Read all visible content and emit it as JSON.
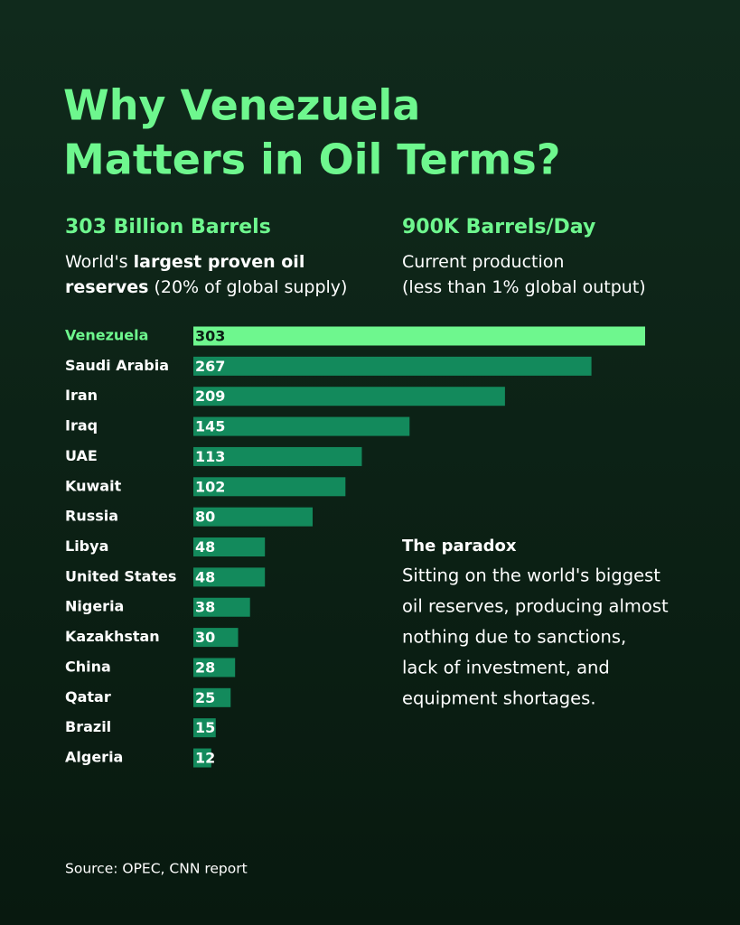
{
  "chart_data": {
    "type": "bar",
    "orientation": "horizontal",
    "title_lines": [
      "Why Venezuela",
      "Matters in Oil Terms?"
    ],
    "stats": [
      {
        "headline": "303 Billion Barrels",
        "lines": [
          [
            "World's ",
            "largest proven oil"
          ],
          [
            "reserves",
            " (20% of global supply)"
          ]
        ]
      },
      {
        "headline": "900K Barrels/Day",
        "lines": [
          [
            "Current production"
          ],
          [
            "(less than 1% global output)"
          ]
        ]
      }
    ],
    "categories": [
      "Venezuela",
      "Saudi Arabia",
      "Iran",
      "Iraq",
      "UAE",
      "Kuwait",
      "Russia",
      "Libya",
      "United States",
      "Nigeria",
      "Kazakhstan",
      "China",
      "Qatar",
      "Brazil",
      "Algeria"
    ],
    "values": [
      303,
      267,
      209,
      145,
      113,
      102,
      80,
      48,
      48,
      38,
      30,
      28,
      25,
      15,
      12
    ],
    "colors": [
      "#6ef78e",
      "#138a5c",
      "#138a5c",
      "#138a5c",
      "#138a5c",
      "#138a5c",
      "#138a5c",
      "#138a5c",
      "#138a5c",
      "#138a5c",
      "#138a5c",
      "#138a5c",
      "#138a5c",
      "#138a5c",
      "#138a5c"
    ],
    "xlim": [
      0,
      303
    ],
    "annotation": {
      "heading": "The paradox",
      "lines": [
        "Sitting on the world's biggest",
        "oil reserves, producing almost",
        "nothing due to sanctions,",
        "lack of investment, and",
        "equipment shortages."
      ]
    },
    "source": "Source: OPEC, CNN report"
  }
}
